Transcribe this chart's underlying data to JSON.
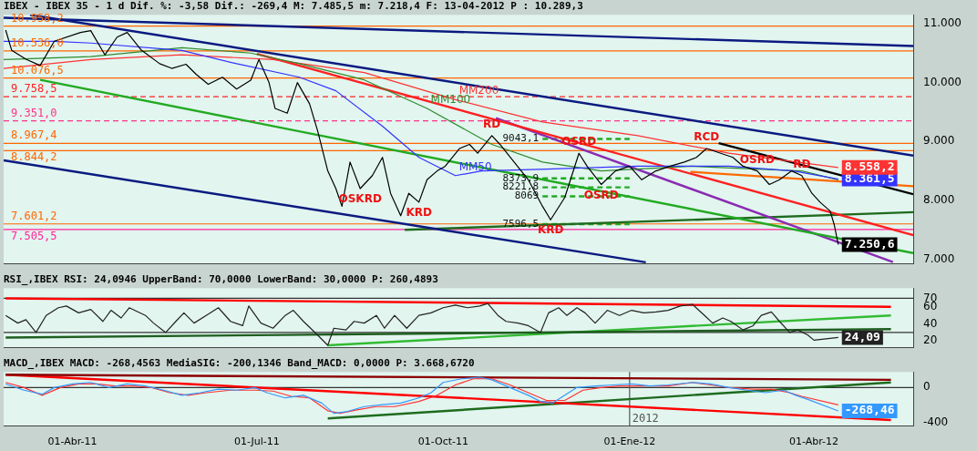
{
  "chart_data": [
    {
      "type": "line",
      "title": "IBEX - IBEX 35 - 1 d Dif. %: -3,58 Dif.: -269,4 M: 7.485,5 m: 7.218,4 F: 13-04-2012 P : 10.289,3",
      "xlim": [
        "2011-02-26",
        "2012-05-20"
      ],
      "ylim": [
        6920,
        11150
      ],
      "yticks": [
        {
          "value": 7000,
          "label": "7.000"
        },
        {
          "value": 8000,
          "label": "8.000"
        },
        {
          "value": 9000,
          "label": "9.000"
        },
        {
          "value": 10000,
          "label": "10.000"
        },
        {
          "value": 11000,
          "label": "11.000"
        }
      ],
      "tick_labels": "y",
      "grid": false,
      "legend": false,
      "marker": "none",
      "ref_lines": [
        {
          "axis": "y",
          "value": 10958.2,
          "label": "10.958,2",
          "color": "#ff6600"
        },
        {
          "axis": "y",
          "value": 10536.0,
          "label": "10.536,0",
          "color": "#ff6600"
        },
        {
          "axis": "y",
          "value": 10076.5,
          "label": "10.076,5",
          "color": "#ff6600"
        },
        {
          "axis": "y",
          "value": 9758.5,
          "label": "9.758,5",
          "color": "#ff2222",
          "line_style": "dashed"
        },
        {
          "axis": "y",
          "value": 9351.0,
          "label": "9.351,0",
          "color": "#ff3388",
          "line_style": "dashed"
        },
        {
          "axis": "y",
          "value": 8967.4,
          "label": "8.967,4",
          "color": "#ff6600"
        },
        {
          "axis": "y",
          "value": 8844.2,
          "label": "8.844,2",
          "color": "#ff6600"
        },
        {
          "axis": "y",
          "value": 7601.2,
          "label": "7.601,2",
          "color": "#ff6600"
        },
        {
          "axis": "y",
          "value": 7505.5,
          "label": "7.505,5",
          "color": "#ff2299"
        }
      ],
      "annotations": [
        {
          "text": "OSKRD",
          "x": "2011-08-21",
          "y": 8200
        },
        {
          "text": "KRD",
          "x": "2011-09-19",
          "y": 7970
        },
        {
          "text": "RD",
          "x": "2011-10-25",
          "y": 9100
        },
        {
          "text": "OSRD",
          "x": "2011-12-07",
          "y": 8800
        },
        {
          "text": "KRD",
          "x": "2011-11-23",
          "y": 7670
        },
        {
          "text": "OSRD",
          "x": "2011-12-18",
          "y": 8270
        },
        {
          "text": "RCD",
          "x": "2012-02-08",
          "y": 8880
        },
        {
          "text": "OSRD",
          "x": "2012-03-04",
          "y": 8500
        },
        {
          "text": "RD",
          "x": "2012-03-26",
          "y": 8420
        }
      ],
      "series": [
        {
          "color": "#000000",
          "x": [
            "2011-02-27",
            "2011-03-02",
            "2011-03-09",
            "2011-03-16",
            "2011-03-23",
            "2011-04-05",
            "2011-04-10",
            "2011-04-17",
            "2011-04-23",
            "2011-04-28",
            "2011-05-05",
            "2011-05-14",
            "2011-05-20",
            "2011-05-27",
            "2011-06-01",
            "2011-06-07",
            "2011-06-14",
            "2011-06-21",
            "2011-06-28",
            "2011-07-02",
            "2011-07-07",
            "2011-07-10",
            "2011-07-16",
            "2011-07-21",
            "2011-07-27",
            "2011-07-31",
            "2011-08-05",
            "2011-08-09",
            "2011-08-12",
            "2011-08-16",
            "2011-08-21",
            "2011-08-27",
            "2011-09-01",
            "2011-09-05",
            "2011-09-10",
            "2011-09-14",
            "2011-09-19",
            "2011-09-23",
            "2011-09-28",
            "2011-10-02",
            "2011-10-09",
            "2011-10-14",
            "2011-10-18",
            "2011-10-25",
            "2011-10-29",
            "2011-11-05",
            "2011-11-12",
            "2011-11-19",
            "2011-11-23",
            "2011-11-30",
            "2011-12-07",
            "2011-12-11",
            "2011-12-18",
            "2011-12-25",
            "2012-01-01",
            "2012-01-07",
            "2012-01-14",
            "2012-01-21",
            "2012-01-28",
            "2012-02-03",
            "2012-02-08",
            "2012-02-15",
            "2012-02-21",
            "2012-02-26",
            "2012-03-04",
            "2012-03-10",
            "2012-03-15",
            "2012-03-21",
            "2012-03-26",
            "2012-03-31",
            "2012-04-04",
            "2012-04-09",
            "2012-04-11",
            "2012-04-13"
          ],
          "values": [
            10890,
            10545,
            10395,
            10290,
            10700,
            10850,
            10880,
            10470,
            10770,
            10850,
            10550,
            10320,
            10240,
            10310,
            10140,
            9970,
            10090,
            9890,
            10040,
            10390,
            10000,
            9560,
            9480,
            10000,
            9640,
            9180,
            8500,
            8200,
            7900,
            8650,
            8200,
            8420,
            8730,
            8120,
            7740,
            8120,
            7970,
            8350,
            8500,
            8580,
            8880,
            8950,
            8800,
            9100,
            8950,
            8650,
            8350,
            7900,
            7670,
            8050,
            8800,
            8580,
            8270,
            8500,
            8580,
            8350,
            8500,
            8580,
            8650,
            8730,
            8880,
            8800,
            8730,
            8580,
            8500,
            8270,
            8350,
            8500,
            8420,
            8120,
            7970,
            7820,
            7590,
            7250.6
          ],
          "value_labels": [
            null,
            null,
            null,
            null,
            null,
            null,
            null,
            null,
            null,
            null,
            null,
            null,
            null,
            null,
            null,
            null,
            null,
            null,
            null,
            null,
            null,
            null,
            null,
            null,
            null,
            null,
            null,
            null,
            null,
            null,
            null,
            null,
            null,
            null,
            null,
            null,
            null,
            null,
            null,
            null,
            null,
            null,
            null,
            null,
            null,
            null,
            null,
            null,
            null,
            null,
            null,
            null,
            null,
            null,
            null,
            null,
            null,
            null,
            null,
            null,
            null,
            null,
            null,
            null,
            null,
            null,
            null,
            null,
            null,
            null,
            null,
            null,
            null,
            "7.250,6"
          ]
        },
        {
          "name": "MM50",
          "color": "#3333ff",
          "x": [
            "2011-02-26",
            "2011-03-23",
            "2011-04-10",
            "2011-05-25",
            "2011-06-21",
            "2011-07-22",
            "2011-08-09",
            "2011-09-01",
            "2011-09-19",
            "2011-10-07",
            "2011-10-20",
            "2011-11-21",
            "2012-01-05",
            "2012-02-19",
            "2012-03-22",
            "2012-04-13"
          ],
          "values": [
            10700,
            10700,
            10670,
            10545,
            10320,
            10090,
            9860,
            9260,
            8730,
            8420,
            8500,
            8530,
            8580,
            8580,
            8500,
            8361.5
          ],
          "value_labels": [
            null,
            null,
            null,
            null,
            null,
            null,
            null,
            null,
            null,
            null,
            null,
            null,
            null,
            null,
            null,
            "8.361,5"
          ]
        },
        {
          "name": "MM100",
          "color": "#2e8b2e",
          "x": [
            "2011-02-26",
            "2011-04-10",
            "2011-05-25",
            "2011-06-28",
            "2011-07-22",
            "2011-08-23",
            "2011-09-23",
            "2011-10-25",
            "2011-11-19",
            "2011-12-18",
            "2012-02-01",
            "2012-03-04",
            "2012-03-26",
            "2012-04-13"
          ],
          "values": [
            10390,
            10440,
            10590,
            10500,
            10320,
            10045,
            9560,
            8950,
            8650,
            8500,
            8580,
            8530,
            8500,
            8350
          ]
        },
        {
          "name": "MM200",
          "color": "#ff3333",
          "x": [
            "2011-02-26",
            "2011-04-10",
            "2011-05-25",
            "2011-07-09",
            "2011-08-23",
            "2011-10-07",
            "2011-11-19",
            "2012-01-05",
            "2012-02-19",
            "2012-04-13"
          ],
          "values": [
            10240,
            10390,
            10470,
            10390,
            10170,
            9710,
            9330,
            9100,
            8800,
            8558.2
          ],
          "value_labels": [
            null,
            null,
            null,
            null,
            null,
            null,
            null,
            null,
            null,
            "8.558,2"
          ]
        },
        {
          "color": "#0a1a80",
          "x": [
            "2011-02-26",
            "2012-05-20"
          ],
          "values": [
            11100,
            10620
          ]
        },
        {
          "color": "#0a1a80",
          "x": [
            "2011-03-11",
            "2012-05-20"
          ],
          "values": [
            11150,
            8760
          ]
        },
        {
          "color": "#0a1a80",
          "x": [
            "2011-02-26",
            "2012-01-09"
          ],
          "values": [
            8680,
            6950
          ]
        },
        {
          "color": "#22aa22",
          "x": [
            "2011-03-16",
            "2012-05-20"
          ],
          "values": [
            10045,
            7105
          ]
        },
        {
          "color": "#ff2020",
          "x": [
            "2011-07-01",
            "2012-05-20"
          ],
          "values": [
            10485,
            7410
          ]
        },
        {
          "color": "#8a2bb2",
          "x": [
            "2011-10-27",
            "2012-05-10"
          ],
          "values": [
            9395,
            6955
          ]
        },
        {
          "color": "#000000",
          "x": [
            "2012-02-14",
            "2012-05-20"
          ],
          "values": [
            8970,
            8105
          ]
        },
        {
          "color": "#ff6a00",
          "x": [
            "2012-01-31",
            "2012-05-20"
          ],
          "values": [
            8485,
            8240
          ]
        },
        {
          "color": "#1e6b1e",
          "x": [
            "2011-09-12",
            "2012-05-20"
          ],
          "values": [
            7500,
            7800
          ]
        },
        {
          "color": "#22aa22",
          "line_style": "dashed",
          "x": [
            "2011-11-19",
            "2012-01-01"
          ],
          "values": [
            9043.1,
            9043.1
          ],
          "value_labels": [
            "9043,1",
            null
          ]
        },
        {
          "color": "#22aa22",
          "line_style": "dashed",
          "x": [
            "2011-11-19",
            "2012-01-01"
          ],
          "values": [
            8373.9,
            8373.9
          ],
          "value_labels": [
            "8373,9",
            null
          ]
        },
        {
          "color": "#22aa22",
          "line_style": "dashed",
          "x": [
            "2011-11-19",
            "2012-01-01"
          ],
          "values": [
            8221.8,
            8221.8
          ],
          "value_labels": [
            "8221,8",
            null
          ]
        },
        {
          "color": "#22aa22",
          "line_style": "dashed",
          "x": [
            "2011-11-19",
            "2012-01-01"
          ],
          "values": [
            8069,
            8069
          ],
          "value_labels": [
            "8069",
            null
          ]
        },
        {
          "color": "#22aa22",
          "line_style": "dashed",
          "x": [
            "2011-11-19",
            "2012-01-01"
          ],
          "values": [
            7596.5,
            7596.5
          ],
          "value_labels": [
            "7596,5",
            null
          ]
        }
      ]
    },
    {
      "type": "line",
      "title": "RSI_,IBEX RSI: 24,0946 UpperBand: 70,0000 LowerBand: 30,0000 P: 260,4893",
      "xlim": [
        "2011-02-26",
        "2012-05-20"
      ],
      "ylim": [
        12,
        82
      ],
      "yticks": [
        20,
        40,
        60,
        70
      ],
      "tick_labels": "y",
      "grid": false,
      "legend": false,
      "marker": "none",
      "ref_lines": [
        {
          "axis": "y",
          "value": 70,
          "color": "#333333"
        },
        {
          "axis": "y",
          "value": 30,
          "color": "#333333"
        }
      ],
      "series": [
        {
          "color": "#222222",
          "x": [
            "2011-02-27",
            "2011-03-05",
            "2011-03-09",
            "2011-03-14",
            "2011-03-19",
            "2011-03-25",
            "2011-03-29",
            "2011-04-04",
            "2011-04-10",
            "2011-04-16",
            "2011-04-20",
            "2011-04-25",
            "2011-04-29",
            "2011-05-07",
            "2011-05-11",
            "2011-05-17",
            "2011-05-22",
            "2011-05-26",
            "2011-05-31",
            "2011-06-06",
            "2011-06-12",
            "2011-06-18",
            "2011-06-24",
            "2011-06-27",
            "2011-07-03",
            "2011-07-09",
            "2011-07-15",
            "2011-07-19",
            "2011-07-24",
            "2011-07-31",
            "2011-08-05",
            "2011-08-08",
            "2011-08-14",
            "2011-08-18",
            "2011-08-23",
            "2011-08-29",
            "2011-09-02",
            "2011-09-07",
            "2011-09-13",
            "2011-09-19",
            "2011-09-25",
            "2011-10-01",
            "2011-10-07",
            "2011-10-13",
            "2011-10-19",
            "2011-10-23",
            "2011-10-28",
            "2011-11-01",
            "2011-11-07",
            "2011-11-12",
            "2011-11-18",
            "2011-11-22",
            "2011-11-27",
            "2011-12-01",
            "2011-12-06",
            "2011-12-10",
            "2011-12-15",
            "2011-12-21",
            "2011-12-27",
            "2012-01-02",
            "2012-01-08",
            "2012-01-14",
            "2012-01-20",
            "2012-01-26",
            "2012-02-01",
            "2012-02-07",
            "2012-02-11",
            "2012-02-16",
            "2012-02-20",
            "2012-02-26",
            "2012-03-02",
            "2012-03-06",
            "2012-03-11",
            "2012-03-15",
            "2012-03-20",
            "2012-03-24",
            "2012-03-29",
            "2012-04-01",
            "2012-04-13"
          ],
          "values": [
            50,
            41,
            45,
            30,
            50,
            59,
            61,
            53,
            57,
            43,
            56,
            47,
            59,
            50,
            41,
            30,
            43,
            53,
            41,
            50,
            59,
            43,
            38,
            61,
            41,
            35,
            50,
            56,
            43,
            27,
            15,
            35,
            33,
            43,
            41,
            50,
            35,
            50,
            35,
            50,
            53,
            59,
            62,
            59,
            61,
            64,
            50,
            43,
            41,
            38,
            30,
            53,
            59,
            50,
            59,
            53,
            41,
            56,
            50,
            56,
            53,
            54,
            56,
            61,
            63,
            50,
            41,
            47,
            43,
            33,
            38,
            50,
            54,
            43,
            30,
            33,
            27,
            21,
            24.09
          ],
          "value_labels": [
            null,
            null,
            null,
            null,
            null,
            null,
            null,
            null,
            null,
            null,
            null,
            null,
            null,
            null,
            null,
            null,
            null,
            null,
            null,
            null,
            null,
            null,
            null,
            null,
            null,
            null,
            null,
            null,
            null,
            null,
            null,
            null,
            null,
            null,
            null,
            null,
            null,
            null,
            null,
            null,
            null,
            null,
            null,
            null,
            null,
            null,
            null,
            null,
            null,
            null,
            null,
            null,
            null,
            null,
            null,
            null,
            null,
            null,
            null,
            null,
            null,
            null,
            null,
            null,
            null,
            null,
            null,
            null,
            null,
            null,
            null,
            null,
            null,
            null,
            null,
            null,
            null,
            null,
            "24,09"
          ]
        },
        {
          "color": "#ff0000",
          "x": [
            "2011-02-27",
            "2012-05-09"
          ],
          "values": [
            70,
            60
          ]
        },
        {
          "color": "#1e5e1e",
          "x": [
            "2011-02-27",
            "2012-05-09"
          ],
          "values": [
            24,
            34
          ]
        },
        {
          "color": "#33bb33",
          "x": [
            "2011-08-05",
            "2012-05-09"
          ],
          "values": [
            15,
            50
          ]
        }
      ]
    },
    {
      "type": "line",
      "title": "MACD_,IBEX MACD: -268,4563 MediaSIG: -200,1346 Band_MACD: 0,0000 P: 3.668,6720",
      "xlim": [
        "2011-02-26",
        "2012-05-20"
      ],
      "xticks": [
        {
          "value": "2011-04-01",
          "label": "01-Abr-11"
        },
        {
          "value": "2011-07-01",
          "label": "01-Jul-11"
        },
        {
          "value": "2011-10-01",
          "label": "01-Oct-11"
        },
        {
          "value": "2012-01-01",
          "label": "01-Ene-12"
        },
        {
          "value": "2012-04-01",
          "label": "01-Abr-12"
        }
      ],
      "ylim": [
        -445,
        180
      ],
      "yticks": [
        -400,
        0
      ],
      "grid": false,
      "legend": false,
      "marker": "none",
      "ref_lines": [
        {
          "axis": "y",
          "value": 0,
          "color": "#333333"
        },
        {
          "axis": "x",
          "value": "2012-01-01",
          "label": "2012",
          "color": "#555555"
        }
      ],
      "series": [
        {
          "color": "#3399ff",
          "x": [
            "2011-02-27",
            "2011-03-08",
            "2011-03-17",
            "2011-03-23",
            "2011-04-01",
            "2011-04-10",
            "2011-04-19",
            "2011-04-28",
            "2011-05-07",
            "2011-05-16",
            "2011-05-25",
            "2011-06-03",
            "2011-06-12",
            "2011-06-21",
            "2011-06-30",
            "2011-07-06",
            "2011-07-15",
            "2011-07-24",
            "2011-08-02",
            "2011-08-08",
            "2011-08-14",
            "2011-08-23",
            "2011-09-01",
            "2011-09-10",
            "2011-09-19",
            "2011-09-25",
            "2011-10-01",
            "2011-10-10",
            "2011-10-19",
            "2011-10-25",
            "2011-11-03",
            "2011-11-12",
            "2011-11-18",
            "2011-11-24",
            "2011-11-30",
            "2011-12-06",
            "2011-12-15",
            "2011-12-24",
            "2012-01-02",
            "2012-01-11",
            "2012-01-20",
            "2012-02-01",
            "2012-02-10",
            "2012-02-19",
            "2012-02-28",
            "2012-03-08",
            "2012-03-17",
            "2012-03-23",
            "2012-03-29",
            "2012-04-13"
          ],
          "values": [
            41,
            -30,
            -77,
            0,
            41,
            59,
            0,
            41,
            18,
            -30,
            -89,
            -59,
            -18,
            -30,
            0,
            -59,
            -119,
            -89,
            -178,
            -296,
            -279,
            -219,
            -196,
            -178,
            -119,
            -59,
            59,
            101,
            119,
            89,
            0,
            -89,
            -160,
            -178,
            -89,
            0,
            18,
            30,
            41,
            18,
            30,
            59,
            41,
            0,
            -30,
            -59,
            -30,
            -89,
            -136,
            -268.46
          ],
          "value_labels": [
            null,
            null,
            null,
            null,
            null,
            null,
            null,
            null,
            null,
            null,
            null,
            null,
            null,
            null,
            null,
            null,
            null,
            null,
            null,
            null,
            null,
            null,
            null,
            null,
            null,
            null,
            null,
            null,
            null,
            null,
            null,
            null,
            null,
            null,
            null,
            null,
            null,
            null,
            null,
            null,
            null,
            null,
            null,
            null,
            null,
            null,
            null,
            null,
            null,
            "-268,46"
          ]
        },
        {
          "color": "#ff3333",
          "x": [
            "2011-02-27",
            "2011-03-08",
            "2011-03-17",
            "2011-03-26",
            "2011-04-04",
            "2011-04-13",
            "2011-04-22",
            "2011-05-01",
            "2011-05-10",
            "2011-05-19",
            "2011-05-28",
            "2011-06-06",
            "2011-06-18",
            "2011-06-30",
            "2011-07-09",
            "2011-07-18",
            "2011-07-27",
            "2011-08-05",
            "2011-08-11",
            "2011-08-20",
            "2011-08-29",
            "2011-09-07",
            "2011-09-19",
            "2011-09-28",
            "2011-10-07",
            "2011-10-16",
            "2011-10-25",
            "2011-11-03",
            "2011-11-12",
            "2011-11-21",
            "2011-11-30",
            "2011-12-09",
            "2011-12-18",
            "2011-12-27",
            "2012-01-08",
            "2012-01-20",
            "2012-02-01",
            "2012-02-10",
            "2012-02-19",
            "2012-03-02",
            "2012-03-11",
            "2012-03-20",
            "2012-03-26",
            "2012-04-13"
          ],
          "values": [
            59,
            0,
            -89,
            0,
            41,
            41,
            18,
            18,
            0,
            -59,
            -89,
            -59,
            -30,
            -30,
            -41,
            -101,
            -119,
            -267,
            -296,
            -255,
            -219,
            -219,
            -160,
            -89,
            30,
            101,
            101,
            30,
            -59,
            -148,
            -148,
            -30,
            0,
            18,
            18,
            18,
            59,
            30,
            0,
            -18,
            -18,
            -59,
            -101,
            -200.13
          ]
        },
        {
          "color": "#8b0000",
          "x": [
            "2011-02-27",
            "2012-05-09"
          ],
          "values": [
            148,
            89
          ]
        },
        {
          "color": "#ff0000",
          "x": [
            "2011-02-27",
            "2012-05-09"
          ],
          "values": [
            148,
            -373
          ]
        },
        {
          "color": "#1e6b1e",
          "x": [
            "2011-08-05",
            "2012-05-09"
          ],
          "values": [
            -356,
            59
          ]
        }
      ]
    }
  ]
}
